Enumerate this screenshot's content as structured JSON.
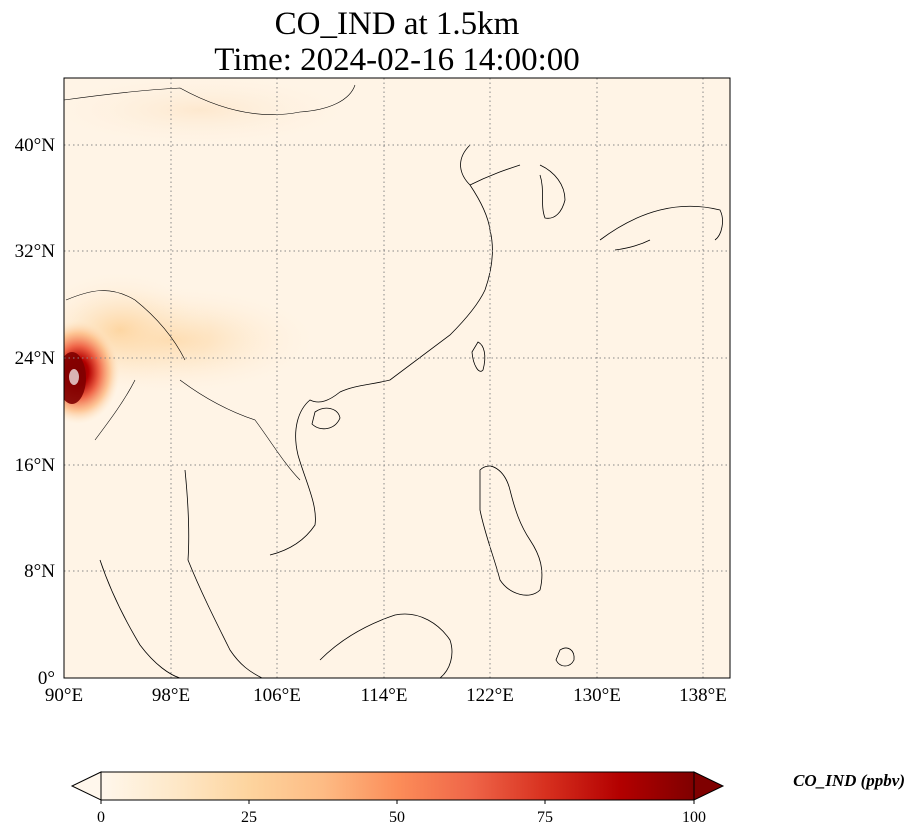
{
  "title": {
    "line1": "CO_IND at 1.5km",
    "line2": "Time: 2024-02-16 14:00:00"
  },
  "map": {
    "extent": {
      "lon": [
        90,
        140
      ],
      "lat": [
        0,
        45
      ]
    },
    "lon_ticks": [
      "90°E",
      "98°E",
      "106°E",
      "114°E",
      "122°E",
      "130°E",
      "138°E"
    ],
    "lat_ticks": [
      "0°",
      "8°N",
      "16°N",
      "24°N",
      "32°N",
      "40°N"
    ],
    "gridlines": "dotted",
    "field": "CO_IND",
    "hotspot": "Eastern India / Bangladesh / Myanmar border (left edge near 22°N)"
  },
  "colorbar": {
    "label": "CO_IND (ppbv)",
    "ticks": [
      "0",
      "25",
      "50",
      "75",
      "100"
    ],
    "range": [
      0,
      100
    ],
    "extend": "both",
    "colormap": "OrRd",
    "colors": [
      "#fff7ec",
      "#fee8c8",
      "#fdd49e",
      "#fdbb84",
      "#fc8d59",
      "#ef6548",
      "#d7301f",
      "#b30000",
      "#7f0000"
    ]
  }
}
